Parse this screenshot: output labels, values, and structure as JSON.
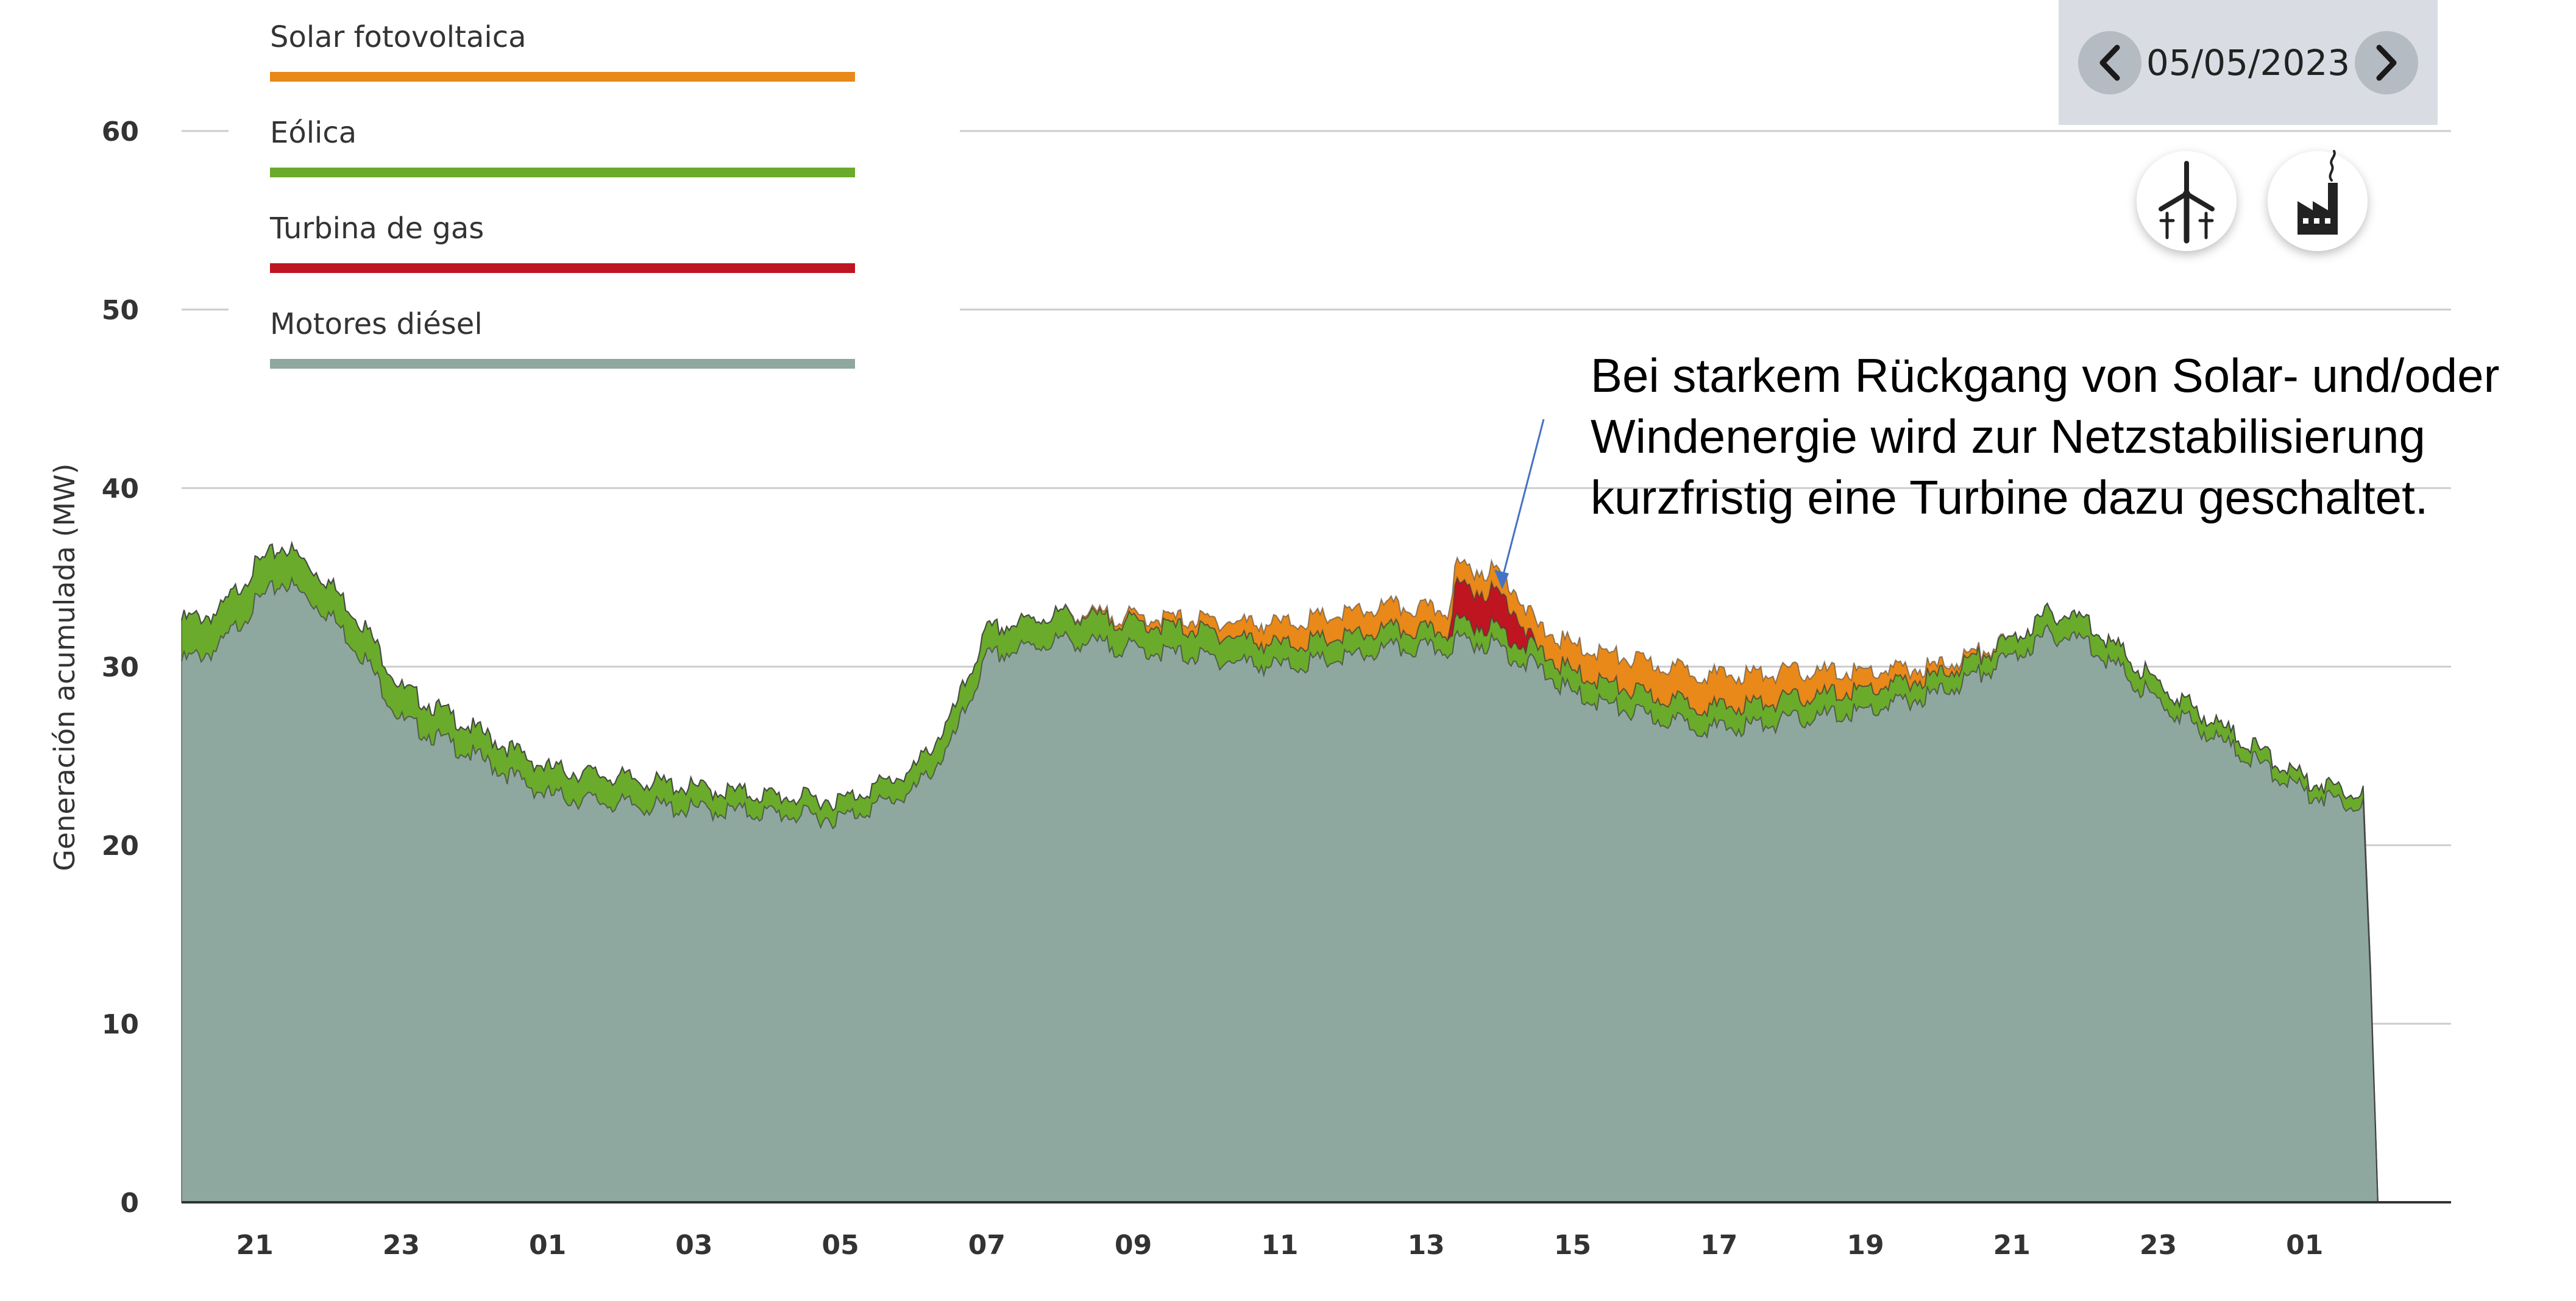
{
  "colors": {
    "solar": "#e8891a",
    "eolica": "#6aab2b",
    "gas": "#bf1520",
    "diesel": "#8fa89f",
    "grid": "#cccccc",
    "date_box_bg": "#d9dde3",
    "nav_button_bg": "#b5bbc3",
    "annotation_arrow": "#4472c4"
  },
  "date_selector": {
    "date": "05/05/2023",
    "prev_icon": "chevron-left-icon",
    "next_icon": "chevron-right-icon"
  },
  "view_buttons": [
    {
      "icon": "wind-turbine-icon"
    },
    {
      "icon": "factory-icon"
    }
  ],
  "annotation": {
    "lines": [
      "Bei starkem Rückgang von Solar- und/oder",
      "Windenergie wird zur Netzstabilisierung",
      "kurzfristig eine Turbine dazu geschaltet."
    ]
  },
  "chart_data": {
    "type": "area",
    "stacked": true,
    "ylabel": "Generación acumulada (MW)",
    "xlabel": "",
    "ylim": [
      0,
      60
    ],
    "yticks": [
      0,
      10,
      20,
      30,
      40,
      50,
      60
    ],
    "grid": true,
    "x_unit": "hour",
    "xlim": [
      20,
      51
    ],
    "xticks": [
      {
        "x": 21,
        "label": "21"
      },
      {
        "x": 23,
        "label": "23"
      },
      {
        "x": 25,
        "label": "01"
      },
      {
        "x": 27,
        "label": "03"
      },
      {
        "x": 29,
        "label": "05"
      },
      {
        "x": 31,
        "label": "07"
      },
      {
        "x": 33,
        "label": "09"
      },
      {
        "x": 35,
        "label": "11"
      },
      {
        "x": 37,
        "label": "13"
      },
      {
        "x": 39,
        "label": "15"
      },
      {
        "x": 41,
        "label": "17"
      },
      {
        "x": 43,
        "label": "19"
      },
      {
        "x": 45,
        "label": "21"
      },
      {
        "x": 47,
        "label": "23"
      },
      {
        "x": 49,
        "label": "01"
      }
    ],
    "legend_position": "top-left",
    "x": [
      20,
      20.5,
      21,
      21.4,
      22,
      22.5,
      23,
      24,
      25,
      26,
      27,
      28,
      29,
      30,
      30.5,
      31,
      32,
      33,
      34,
      35,
      36,
      36.5,
      37,
      37.3,
      37.4,
      38,
      38.2,
      38.5,
      39,
      40,
      41,
      42,
      43,
      44,
      45,
      45.5,
      46,
      47,
      48,
      49,
      49.5,
      49.8,
      49.9,
      50,
      50.1
    ],
    "series": [
      {
        "name": "Motores diésel",
        "values": [
          30.3,
          31.0,
          33.5,
          34.8,
          33.0,
          30.5,
          27.0,
          25.0,
          22.8,
          22.3,
          22.0,
          21.8,
          21.5,
          23.0,
          25.5,
          30.5,
          31.5,
          31.0,
          30.5,
          30.0,
          30.5,
          31.0,
          31.0,
          31.0,
          31.5,
          31.2,
          30.5,
          30.0,
          28.5,
          27.2,
          26.5,
          27.0,
          27.5,
          28.5,
          30.5,
          31.8,
          31.5,
          28.0,
          25.5,
          23.0,
          22.5,
          22.3,
          12.0,
          0,
          0
        ]
      },
      {
        "name": "Eólica",
        "values": [
          2.3,
          2.0,
          2.1,
          2.0,
          1.8,
          1.8,
          1.8,
          1.5,
          1.5,
          1.5,
          1.2,
          1.0,
          1.0,
          1.2,
          1.5,
          1.5,
          1.5,
          1.5,
          1.5,
          1.2,
          1.2,
          1.1,
          1.0,
          1.0,
          1.0,
          1.0,
          1.0,
          1.0,
          1.2,
          1.2,
          1.2,
          1.2,
          1.2,
          1.0,
          1.0,
          1.2,
          1.2,
          1.0,
          0.8,
          0.7,
          0.7,
          0.7,
          0.5,
          0,
          0
        ]
      },
      {
        "name": "Turbina de gas",
        "values": [
          0,
          0,
          0,
          0,
          0,
          0,
          0,
          0,
          0,
          0,
          0,
          0,
          0,
          0,
          0,
          0,
          0,
          0,
          0,
          0,
          0,
          0,
          0,
          0,
          2.0,
          1.9,
          1.8,
          0,
          0,
          0,
          0,
          0,
          0,
          0,
          0,
          0,
          0,
          0,
          0,
          0,
          0,
          0,
          0,
          0,
          0
        ]
      },
      {
        "name": "Solar fotovoltaica",
        "values": [
          0,
          0,
          0,
          0,
          0,
          0,
          0,
          0,
          0,
          0,
          0,
          0,
          0,
          0,
          0,
          0,
          0,
          0.3,
          0.6,
          1.2,
          1.3,
          1.3,
          1.2,
          1.2,
          1.1,
          1.2,
          1.2,
          1.3,
          1.5,
          1.8,
          1.8,
          1.5,
          1.0,
          0.5,
          0,
          0,
          0,
          0,
          0,
          0,
          0,
          0,
          0,
          0,
          0
        ]
      }
    ],
    "legend": [
      {
        "label": "Solar fotovoltaica",
        "color": "#e8891a"
      },
      {
        "label": "Eólica",
        "color": "#6aab2b"
      },
      {
        "label": "Turbina de gas",
        "color": "#bf1520"
      },
      {
        "label": "Motores diésel",
        "color": "#8fa89f"
      }
    ]
  }
}
